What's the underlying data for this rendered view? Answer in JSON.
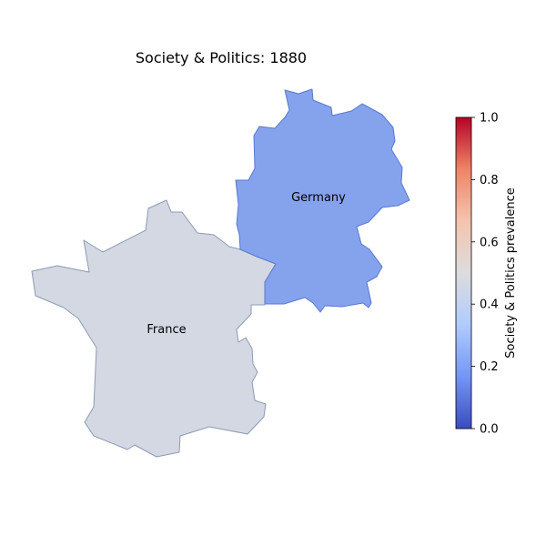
{
  "map": {
    "title": "Society & Politics: 1880",
    "regions": [
      {
        "name": "France",
        "value": 0.42,
        "color": "#d3d8e2",
        "edge_color": "#8c9bb4"
      },
      {
        "name": "Germany",
        "value": 0.18,
        "color": "#85a2ed",
        "edge_color": "#5a78d0"
      }
    ],
    "colorbar": {
      "label": "Society & Politics prevalence",
      "range": [
        0.0,
        1.0
      ],
      "ticks": [
        "0.0",
        "0.2",
        "0.4",
        "0.6",
        "0.8",
        "1.0"
      ],
      "colormap": [
        "#3b4cc0",
        "#7396f5",
        "#b1cbfc",
        "#dcdddd",
        "#f5c4ad",
        "#ee8468",
        "#b40426"
      ]
    }
  }
}
